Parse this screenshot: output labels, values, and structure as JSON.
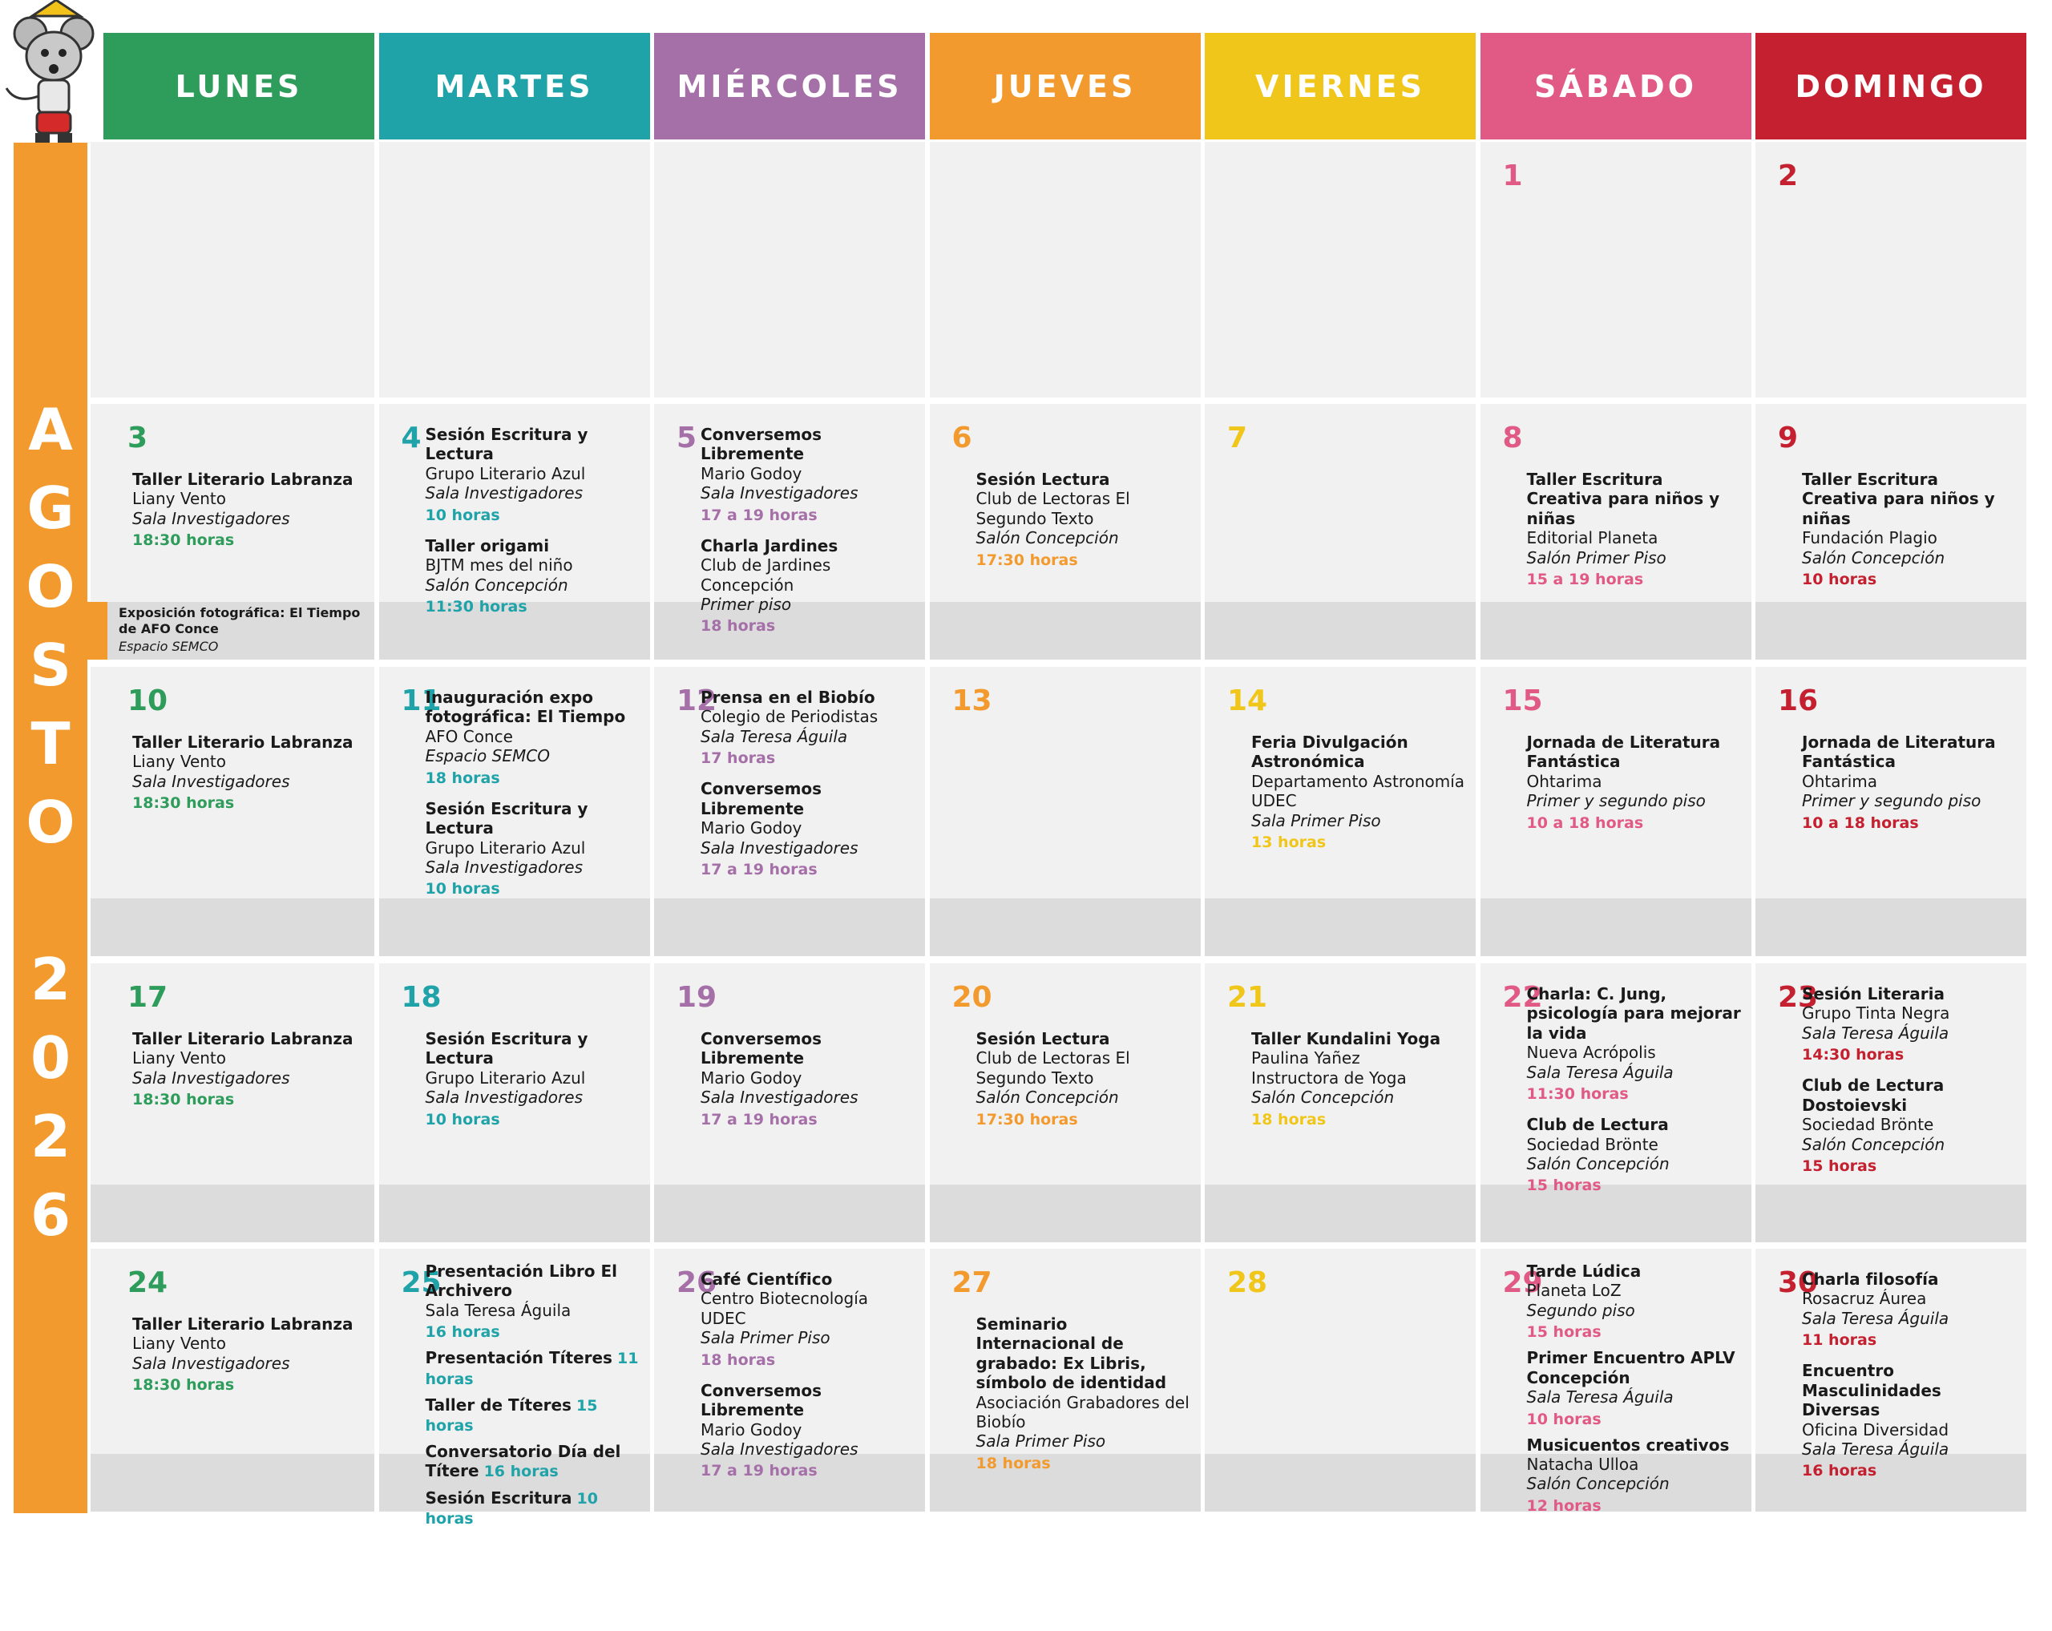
{
  "header": {
    "days": [
      "LUNES",
      "MARTES",
      "MIÉRCOLES",
      "JUEVES",
      "VIERNES",
      "SÁBADO",
      "DOMINGO"
    ]
  },
  "month": "AGOSTO 2026",
  "weeks": [
    {
      "days": [
        null,
        null,
        null,
        null,
        null,
        {
          "day": 1,
          "events": []
        },
        {
          "day": 2,
          "events": []
        }
      ]
    },
    {
      "days": [
        {
          "day": 3,
          "events": [
            {
              "title": "Taller Literario Labranza",
              "lines": [
                "Liany Vento"
              ],
              "place": "Sala Investigadores",
              "time": "18:30 horas"
            }
          ]
        },
        {
          "day": 4,
          "events": [
            {
              "title": "Sesión Escritura y Lectura",
              "lines": [
                "Grupo Literario Azul"
              ],
              "place": "Sala Investigadores",
              "time": "10 horas"
            },
            {
              "title": "Taller origami",
              "lines": [
                "BJTM mes del niño"
              ],
              "place": "Salón Concepción",
              "time": "11:30 horas"
            }
          ]
        },
        {
          "day": 5,
          "events": [
            {
              "title": "Conversemos Libremente",
              "lines": [
                "Mario Godoy"
              ],
              "place": "Sala Investigadores",
              "time": "17 a 19 horas"
            },
            {
              "title": "Charla Jardines",
              "lines": [
                "Club de Jardines Concepción"
              ],
              "place": "Primer piso",
              "time": "18 horas"
            }
          ]
        },
        {
          "day": 6,
          "events": [
            {
              "title": "Sesión Lectura",
              "lines": [
                "Club de Lectoras El Segundo Texto"
              ],
              "place": "Salón Concepción",
              "time": "17:30 horas"
            }
          ]
        },
        {
          "day": 7,
          "events": []
        },
        {
          "day": 8,
          "events": [
            {
              "title": "Taller Escritura Creativa para niños y niñas",
              "lines": [
                "Editorial Planeta"
              ],
              "place": "Salón Primer Piso",
              "time": "15 a 19 horas"
            }
          ]
        },
        {
          "day": 9,
          "events": [
            {
              "title": "Taller Escritura Creativa para niños y niñas",
              "lines": [
                "Fundación Plagio"
              ],
              "place": "Salón Concepción",
              "time": "10 horas"
            }
          ]
        }
      ],
      "band": {
        "title": "Exposición fotográfica: El Tiempo de AFO Conce",
        "place": "Espacio SEMCO"
      }
    },
    {
      "days": [
        {
          "day": 10,
          "events": [
            {
              "title": "Taller Literario Labranza",
              "lines": [
                "Liany Vento"
              ],
              "place": "Sala Investigadores",
              "time": "18:30 horas"
            }
          ]
        },
        {
          "day": 11,
          "events": [
            {
              "title": "Inauguración expo fotográfica: El Tiempo",
              "lines": [
                "AFO Conce"
              ],
              "place": "Espacio SEMCO",
              "time": "18 horas"
            },
            {
              "title": "Sesión Escritura y Lectura",
              "lines": [
                "Grupo Literario Azul"
              ],
              "place": "Sala Investigadores",
              "time": "10 horas"
            }
          ]
        },
        {
          "day": 12,
          "events": [
            {
              "title": "Prensa en el Biobío",
              "lines": [
                "Colegio de Periodistas"
              ],
              "place": "Sala Teresa Águila",
              "time": "17  horas"
            },
            {
              "title": "Conversemos Libremente",
              "lines": [
                "Mario Godoy"
              ],
              "place": "Sala Investigadores",
              "time": "17 a 19 horas"
            }
          ]
        },
        {
          "day": 13,
          "events": []
        },
        {
          "day": 14,
          "events": [
            {
              "title": "Feria Divulgación Astronómica",
              "lines": [
                "Departamento Astronomía UDEC"
              ],
              "place": "Sala Primer Piso",
              "time": "13 horas"
            }
          ]
        },
        {
          "day": 15,
          "events": [
            {
              "title": "Jornada de Literatura Fantástica",
              "lines": [
                "Ohtarima"
              ],
              "place": "Primer y segundo piso",
              "time": "10 a 18 horas"
            }
          ]
        },
        {
          "day": 16,
          "events": [
            {
              "title": "Jornada de Literatura Fantástica",
              "lines": [
                "Ohtarima"
              ],
              "place": "Primer y segundo piso",
              "time": "10 a 18 horas"
            }
          ]
        }
      ]
    },
    {
      "days": [
        {
          "day": 17,
          "events": [
            {
              "title": "Taller Literario Labranza",
              "lines": [
                "Liany Vento"
              ],
              "place": "Sala Investigadores",
              "time": "18:30 horas"
            }
          ]
        },
        {
          "day": 18,
          "events": [
            {
              "title": "Sesión Escritura y Lectura",
              "lines": [
                "Grupo Literario Azul"
              ],
              "place": "Sala Investigadores",
              "time": "10 horas"
            }
          ]
        },
        {
          "day": 19,
          "events": [
            {
              "title": "Conversemos Libremente",
              "lines": [
                "Mario Godoy"
              ],
              "place": "Sala Investigadores",
              "time": "17 a 19 horas"
            }
          ]
        },
        {
          "day": 20,
          "events": [
            {
              "title": "Sesión Lectura",
              "lines": [
                "Club de Lectoras El Segundo Texto"
              ],
              "place": "Salón Concepción",
              "time": "17:30 horas"
            }
          ]
        },
        {
          "day": 21,
          "events": [
            {
              "title": "Taller Kundalini Yoga",
              "lines": [
                "Paulina Yañez",
                "Instructora de Yoga"
              ],
              "place": "Salón Concepción",
              "time": "18 horas"
            }
          ]
        },
        {
          "day": 22,
          "events": [
            {
              "title": "Charla: C. Jung, psicología para mejorar la vida",
              "lines": [
                "Nueva Acrópolis"
              ],
              "place": "Sala Teresa Águila",
              "time": "11:30 horas"
            },
            {
              "title": "Club de Lectura",
              "lines": [
                "Sociedad Brönte"
              ],
              "place": "Salón Concepción",
              "time": "15 horas"
            }
          ]
        },
        {
          "day": 23,
          "events": [
            {
              "title": "Sesión Literaria",
              "lines": [
                "Grupo Tinta Negra"
              ],
              "place": "Sala Teresa Águila",
              "time": "14:30 horas"
            },
            {
              "title": "Club de Lectura Dostoievski",
              "lines": [
                "Sociedad Brönte"
              ],
              "place": "Salón Concepción",
              "time": "15 horas"
            }
          ]
        }
      ]
    },
    {
      "days": [
        {
          "day": 24,
          "events": [
            {
              "title": "Taller Literario Labranza",
              "lines": [
                "Liany Vento"
              ],
              "place": "Sala Investigadores",
              "time": "18:30 horas"
            }
          ]
        },
        {
          "day": 25,
          "events": [
            {
              "title": "Presentación Libro El Archivero",
              "lines": [
                "Sala Teresa Águila"
              ],
              "time": "16 horas"
            },
            {
              "title": "Presentación Títeres",
              "time": "11 horas"
            },
            {
              "title": "Taller de Títeres",
              "time": "15 horas"
            },
            {
              "title": "Conversatorio Día del Títere",
              "time": "16 horas"
            },
            {
              "title": "Sesión Escritura",
              "time": "10 horas"
            }
          ]
        },
        {
          "day": 26,
          "events": [
            {
              "title": "Café Científico",
              "lines": [
                "Centro Biotecnología UDEC"
              ],
              "place": "Sala Primer Piso",
              "time": "18 horas"
            },
            {
              "title": "Conversemos Libremente",
              "lines": [
                "Mario Godoy"
              ],
              "place": "Sala Investigadores",
              "time": "17 a 19 horas"
            }
          ]
        },
        {
          "day": 27,
          "events": [
            {
              "title": "Seminario Internacional de grabado: Ex Libris, símbolo de identidad",
              "lines": [
                "Asociación Grabadores del Biobío"
              ],
              "place": "Sala Primer Piso",
              "time": "18 horas"
            }
          ]
        },
        {
          "day": 28,
          "events": []
        },
        {
          "day": 29,
          "events": [
            {
              "title": "Tarde Lúdica",
              "lines": [
                "Planeta LoZ"
              ],
              "place": "Segundo piso",
              "time": "15 horas"
            },
            {
              "title": "Primer Encuentro APLV Concepción",
              "place": "Sala Teresa Águila",
              "time": "10 horas"
            },
            {
              "title": "Musicuentos creativos",
              "lines": [
                "Natacha Ulloa"
              ],
              "place": "Salón Concepción",
              "time": "12 horas"
            }
          ]
        },
        {
          "day": 30,
          "events": [
            {
              "title": "Charla filosofía",
              "lines": [
                "Rosacruz Áurea"
              ],
              "place": "Sala Teresa Águila",
              "time": "11 horas"
            },
            {
              "title": "Encuentro Masculinidades Diversas",
              "lines": [
                "Oficina Diversidad"
              ],
              "place": "Sala Teresa Águila",
              "time": "16 horas"
            }
          ]
        }
      ]
    }
  ]
}
